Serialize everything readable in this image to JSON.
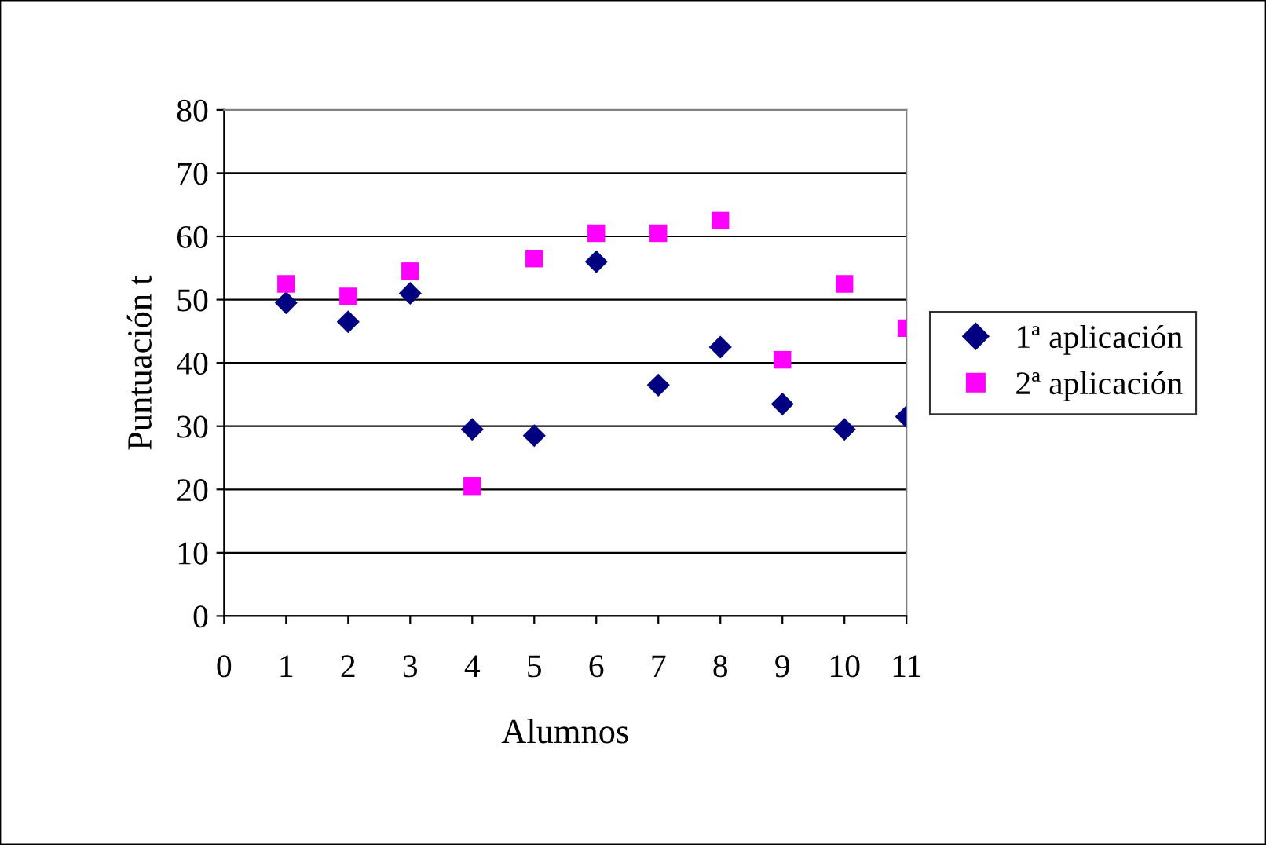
{
  "chart_data": {
    "type": "scatter",
    "xlabel": "Alumnos",
    "ylabel": "Puntuación t",
    "x": [
      1,
      2,
      3,
      4,
      5,
      6,
      7,
      8,
      9,
      10,
      11
    ],
    "series": [
      {
        "name": "1ª aplicación",
        "color": "#000080",
        "marker": "diamond",
        "values": [
          49.5,
          46.5,
          51,
          29.5,
          28.5,
          56,
          36.5,
          42.5,
          33.5,
          29.5,
          31.5
        ]
      },
      {
        "name": "2ª aplicación",
        "color": "#ff00ff",
        "marker": "square",
        "values": [
          52.5,
          50.5,
          54.5,
          20.5,
          56.5,
          60.5,
          60.5,
          62.5,
          40.5,
          52.5,
          45.5
        ]
      }
    ],
    "xlim": [
      0,
      11
    ],
    "xticks": [
      0,
      1,
      2,
      3,
      4,
      5,
      6,
      7,
      8,
      9,
      10,
      11
    ],
    "ylim": [
      0,
      80
    ],
    "yticks": [
      0,
      10,
      20,
      30,
      40,
      50,
      60,
      70,
      80
    ],
    "grid": "y",
    "legend": "right"
  }
}
